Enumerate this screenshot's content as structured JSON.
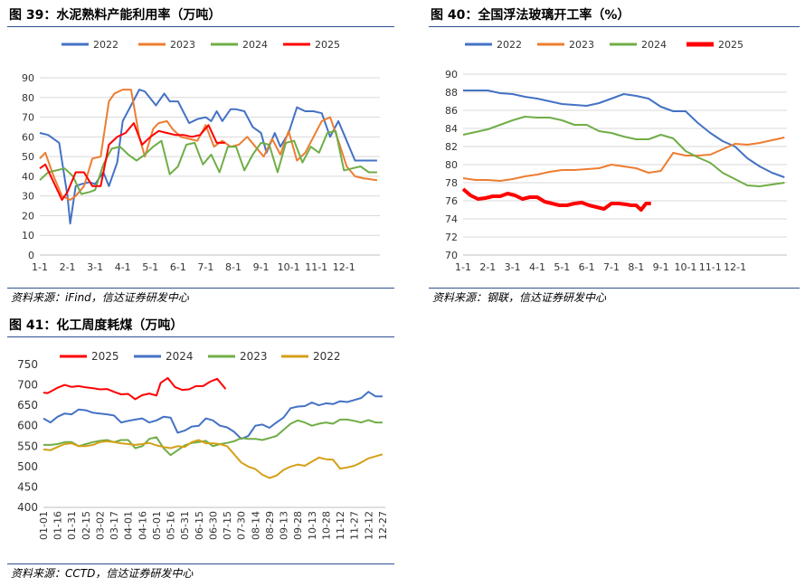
{
  "panels": [
    {
      "title": "图 39：水泥熟料产能利用率（万吨）",
      "source": "资料来源：iFind，信达证券研发中心"
    },
    {
      "title": "图 40：全国浮法玻璃开工率（%）",
      "source": "资料来源：钢联，信达证券研发中心"
    },
    {
      "title": "图 41：化工周度耗煤（万吨）",
      "source": "资料来源：CCTD，信达证券研发中心"
    }
  ],
  "chart_data": [
    {
      "type": "line",
      "title": "水泥熟料产能利用率（万吨）",
      "x_tick_labels": [
        "1-1",
        "2-1",
        "3-1",
        "4-1",
        "5-1",
        "6-1",
        "7-1",
        "8-1",
        "9-1",
        "10-1",
        "11-1",
        "12-1"
      ],
      "ylim": [
        0,
        90
      ],
      "y_ticks": [
        0,
        10,
        20,
        30,
        40,
        50,
        60,
        70,
        80,
        90
      ],
      "grid": true,
      "legend_position": "top",
      "series": [
        {
          "name": "2022",
          "color": "#4472c4",
          "x": [
            0,
            0.3,
            0.7,
            1.0,
            1.1,
            1.3,
            1.5,
            1.8,
            2.0,
            2.3,
            2.5,
            2.8,
            3.0,
            3.3,
            3.6,
            3.8,
            4.2,
            4.5,
            4.7,
            5.0,
            5.4,
            5.7,
            6.0,
            6.2,
            6.4,
            6.6,
            6.9,
            7.1,
            7.4,
            7.7,
            8.0,
            8.2,
            8.5,
            8.7,
            9.0,
            9.3,
            9.6,
            9.9,
            10.2,
            10.5,
            10.8,
            11.1,
            11.4,
            11.7,
            12.2
          ],
          "y": [
            62,
            61,
            57,
            30,
            16,
            35,
            36,
            37,
            36,
            42,
            35,
            47,
            68,
            76,
            84,
            83,
            76,
            82,
            78,
            78,
            67,
            69,
            70,
            68,
            73,
            68,
            74,
            74,
            73,
            65,
            62,
            52,
            62,
            55,
            62,
            75,
            73,
            73,
            72,
            60,
            68,
            58,
            48,
            48,
            48
          ]
        },
        {
          "name": "2023",
          "color": "#ed7d31",
          "x": [
            0,
            0.2,
            0.5,
            0.8,
            1.1,
            1.3,
            1.6,
            1.9,
            2.2,
            2.5,
            2.7,
            3.0,
            3.3,
            3.6,
            3.8,
            4.1,
            4.3,
            4.6,
            4.8,
            5.1,
            5.4,
            5.7,
            6.0,
            6.3,
            6.6,
            6.9,
            7.2,
            7.5,
            7.8,
            8.1,
            8.4,
            8.7,
            9.0,
            9.3,
            9.6,
            9.9,
            10.2,
            10.5,
            10.8,
            11.1,
            11.4,
            11.7,
            12.2
          ],
          "y": [
            49,
            52,
            40,
            30,
            28,
            30,
            35,
            49,
            50,
            78,
            82,
            84,
            84,
            60,
            50,
            64,
            67,
            68,
            64,
            60,
            59,
            58,
            66,
            55,
            58,
            55,
            56,
            60,
            55,
            50,
            59,
            51,
            63,
            48,
            52,
            60,
            68,
            70,
            58,
            45,
            40,
            39,
            38
          ]
        },
        {
          "name": "2024",
          "color": "#70ad47",
          "x": [
            0,
            0.3,
            0.6,
            0.9,
            1.2,
            1.5,
            1.8,
            2.0,
            2.3,
            2.6,
            2.9,
            3.2,
            3.5,
            3.8,
            4.1,
            4.4,
            4.7,
            5.0,
            5.3,
            5.6,
            5.9,
            6.2,
            6.5,
            6.8,
            7.1,
            7.4,
            7.7,
            8.0,
            8.3,
            8.6,
            8.9,
            9.2,
            9.5,
            9.8,
            10.1,
            10.4,
            10.7,
            11.0,
            11.3,
            11.6,
            11.9,
            12.2
          ],
          "y": [
            38,
            42,
            43,
            44,
            40,
            31,
            32,
            33,
            46,
            54,
            55,
            51,
            48,
            51,
            55,
            58,
            41,
            45,
            56,
            57,
            46,
            51,
            42,
            55,
            55,
            43,
            51,
            57,
            56,
            42,
            57,
            58,
            47,
            55,
            52,
            62,
            63,
            43,
            44,
            45,
            42,
            42
          ]
        },
        {
          "name": "2025",
          "color": "#ff0000",
          "x": [
            0,
            0.2,
            0.5,
            0.8,
            1.0,
            1.3,
            1.6,
            1.9,
            2.2,
            2.5,
            2.8,
            3.1,
            3.4,
            3.7,
            4.0,
            4.3,
            4.6,
            4.9,
            5.2,
            5.5,
            5.8,
            6.1,
            6.4,
            6.7
          ],
          "y": [
            44,
            46,
            37,
            28,
            32,
            42,
            42,
            35,
            35,
            56,
            60,
            62,
            67,
            56,
            60,
            63,
            62,
            61,
            61,
            60,
            61,
            66,
            57,
            57
          ]
        }
      ]
    },
    {
      "type": "line",
      "title": "全国浮法玻璃开工率（%）",
      "x_tick_labels": [
        "1-1",
        "2-1",
        "3-1",
        "4-1",
        "5-1",
        "6-1",
        "7-1",
        "8-1",
        "9-1",
        "10-1",
        "11-1",
        "12-1"
      ],
      "ylim": [
        70,
        90
      ],
      "y_ticks": [
        70,
        72,
        74,
        76,
        78,
        80,
        82,
        84,
        86,
        88,
        90
      ],
      "grid": true,
      "legend_position": "top",
      "series": [
        {
          "name": "2022",
          "color": "#4472c4",
          "x": [
            0,
            0.5,
            1.0,
            1.5,
            2.0,
            2.5,
            3.0,
            3.5,
            4.0,
            4.5,
            5.0,
            5.5,
            6.0,
            6.5,
            7.0,
            7.5,
            8.0,
            8.5,
            9.0,
            9.5,
            10.0,
            10.5,
            11.0,
            11.5,
            12.0,
            12.5,
            13.0
          ],
          "y": [
            88.2,
            88.2,
            88.2,
            87.9,
            87.8,
            87.5,
            87.3,
            87.0,
            86.7,
            86.6,
            86.5,
            86.8,
            87.3,
            87.8,
            87.6,
            87.3,
            86.4,
            85.9,
            85.9,
            84.6,
            83.5,
            82.6,
            82.0,
            80.7,
            79.8,
            79.1,
            78.6
          ]
        },
        {
          "name": "2023",
          "color": "#ed7d31",
          "x": [
            0,
            0.5,
            1.0,
            1.5,
            2.0,
            2.5,
            3.0,
            3.5,
            4.0,
            4.5,
            5.0,
            5.5,
            6.0,
            6.5,
            7.0,
            7.5,
            8.0,
            8.5,
            9.0,
            9.5,
            10.0,
            10.5,
            11.0,
            11.5,
            12.0,
            12.5,
            13.0
          ],
          "y": [
            78.5,
            78.3,
            78.3,
            78.2,
            78.4,
            78.7,
            78.9,
            79.2,
            79.4,
            79.4,
            79.5,
            79.6,
            80.0,
            79.8,
            79.6,
            79.1,
            79.3,
            81.3,
            81.0,
            81.0,
            81.1,
            81.7,
            82.3,
            82.2,
            82.4,
            82.7,
            83.0
          ]
        },
        {
          "name": "2024",
          "color": "#70ad47",
          "x": [
            0,
            0.5,
            1.0,
            1.5,
            2.0,
            2.5,
            3.0,
            3.5,
            4.0,
            4.5,
            5.0,
            5.5,
            6.0,
            6.5,
            7.0,
            7.5,
            8.0,
            8.5,
            9.0,
            9.5,
            10.0,
            10.5,
            11.0,
            11.5,
            12.0,
            12.5,
            13.0
          ],
          "y": [
            83.3,
            83.6,
            83.9,
            84.4,
            84.9,
            85.3,
            85.2,
            85.2,
            84.9,
            84.4,
            84.4,
            83.7,
            83.5,
            83.1,
            82.8,
            82.8,
            83.3,
            82.9,
            81.5,
            80.8,
            80.2,
            79.1,
            78.4,
            77.7,
            77.6,
            77.8,
            78.0
          ]
        },
        {
          "name": "2025",
          "color": "#ff0000",
          "x": [
            0,
            0.3,
            0.6,
            0.9,
            1.2,
            1.5,
            1.8,
            2.1,
            2.4,
            2.7,
            3.0,
            3.3,
            3.6,
            3.9,
            4.2,
            4.5,
            4.8,
            5.1,
            5.4,
            5.7,
            6.0,
            6.3,
            6.6,
            6.8,
            7.0,
            7.2,
            7.4,
            7.6
          ],
          "y": [
            77.3,
            76.6,
            76.2,
            76.3,
            76.5,
            76.5,
            76.8,
            76.6,
            76.2,
            76.4,
            76.4,
            75.9,
            75.7,
            75.5,
            75.5,
            75.7,
            75.8,
            75.5,
            75.3,
            75.1,
            75.7,
            75.7,
            75.6,
            75.5,
            75.5,
            75.0,
            75.7,
            75.7
          ]
        }
      ]
    },
    {
      "type": "line",
      "title": "化工周度耗煤（万吨）",
      "x_tick_labels": [
        "01-01",
        "01-16",
        "01-31",
        "02-15",
        "03-02",
        "03-17",
        "04-01",
        "04-16",
        "05-01",
        "05-16",
        "05-31",
        "06-15",
        "06-30",
        "07-15",
        "07-30",
        "08-14",
        "08-29",
        "09-13",
        "09-28",
        "10-13",
        "10-28",
        "11-12",
        "11-27",
        "12-12",
        "12-27"
      ],
      "ylim": [
        400,
        750
      ],
      "y_ticks": [
        400,
        450,
        500,
        550,
        600,
        650,
        700,
        750
      ],
      "grid": false,
      "legend_position": "top",
      "series": [
        {
          "name": "2025",
          "color": "#ff0000",
          "x": [
            0,
            0.3,
            1.0,
            1.5,
            2.0,
            2.5,
            3.0,
            3.5,
            4.0,
            4.5,
            5.0,
            5.5,
            6.0,
            6.5,
            7.0,
            7.5,
            8.0,
            8.3,
            8.8,
            9.3,
            9.8,
            10.3,
            10.8,
            11.3,
            11.8,
            12.3,
            12.9
          ],
          "y": [
            681,
            680,
            693,
            700,
            695,
            697,
            694,
            692,
            689,
            690,
            683,
            677,
            678,
            665,
            675,
            679,
            674,
            705,
            717,
            695,
            688,
            689,
            697,
            697,
            708,
            715,
            690
          ]
        },
        {
          "name": "2024",
          "color": "#4472c4",
          "x": [
            0,
            0.5,
            1.0,
            1.5,
            2.0,
            2.5,
            3.0,
            3.5,
            4.0,
            4.5,
            5.0,
            5.5,
            6.0,
            6.5,
            7.0,
            7.5,
            8.0,
            8.5,
            9.0,
            9.5,
            10.0,
            10.5,
            11.0,
            11.5,
            12.0,
            12.5,
            13.0,
            13.5,
            14.0,
            14.5,
            15.0,
            15.5,
            16.0,
            16.5,
            17.0,
            17.5,
            18.0,
            18.5,
            19.0,
            19.5,
            20.0,
            20.5,
            21.0,
            21.5,
            22.0,
            22.5,
            23.0,
            23.5,
            24.0
          ],
          "y": [
            618,
            608,
            622,
            630,
            628,
            640,
            638,
            632,
            630,
            628,
            625,
            608,
            612,
            615,
            618,
            608,
            613,
            622,
            620,
            583,
            588,
            598,
            600,
            618,
            613,
            600,
            596,
            585,
            568,
            575,
            600,
            603,
            595,
            608,
            620,
            643,
            647,
            648,
            657,
            650,
            655,
            653,
            660,
            658,
            663,
            668,
            683,
            672,
            672
          ]
        },
        {
          "name": "2023",
          "color": "#70ad47",
          "x": [
            0,
            0.5,
            1.0,
            1.5,
            2.0,
            2.5,
            3.0,
            3.5,
            4.0,
            4.5,
            5.0,
            5.5,
            6.0,
            6.5,
            7.0,
            7.5,
            8.0,
            8.5,
            9.0,
            9.5,
            10.0,
            10.5,
            11.0,
            11.5,
            12.0,
            12.5,
            13.0,
            13.5,
            14.0,
            14.5,
            15.0,
            15.5,
            16.0,
            16.5,
            17.0,
            17.5,
            18.0,
            18.5,
            19.0,
            19.5,
            20.0,
            20.5,
            21.0,
            21.5,
            22.0,
            22.5,
            23.0,
            23.5,
            24.0
          ],
          "y": [
            553,
            553,
            555,
            560,
            560,
            550,
            555,
            560,
            563,
            565,
            560,
            565,
            565,
            545,
            550,
            568,
            572,
            545,
            528,
            540,
            552,
            558,
            560,
            563,
            550,
            555,
            558,
            562,
            570,
            568,
            568,
            565,
            570,
            575,
            590,
            605,
            613,
            608,
            600,
            605,
            608,
            605,
            615,
            615,
            612,
            608,
            614,
            608,
            608
          ]
        },
        {
          "name": "2022",
          "color": "#d4a017",
          "x": [
            0,
            0.5,
            1.0,
            1.5,
            2.0,
            2.5,
            3.0,
            3.5,
            4.0,
            4.5,
            5.0,
            5.5,
            6.0,
            6.5,
            7.0,
            7.5,
            8.0,
            8.5,
            9.0,
            9.5,
            10.0,
            10.5,
            11.0,
            11.5,
            12.0,
            12.5,
            13.0,
            13.5,
            14.0,
            14.5,
            15.0,
            15.5,
            16.0,
            16.5,
            17.0,
            17.5,
            18.0,
            18.5,
            19.0,
            19.5,
            20.0,
            20.5,
            21.0,
            21.5,
            22.0,
            22.5,
            23.0,
            23.5,
            24.0
          ],
          "y": [
            542,
            540,
            548,
            555,
            557,
            550,
            550,
            553,
            560,
            562,
            560,
            557,
            555,
            553,
            555,
            558,
            552,
            548,
            545,
            550,
            548,
            560,
            565,
            557,
            557,
            555,
            550,
            530,
            510,
            500,
            494,
            480,
            472,
            478,
            492,
            500,
            505,
            502,
            512,
            522,
            518,
            517,
            495,
            498,
            502,
            510,
            520,
            525,
            530
          ]
        }
      ]
    }
  ]
}
